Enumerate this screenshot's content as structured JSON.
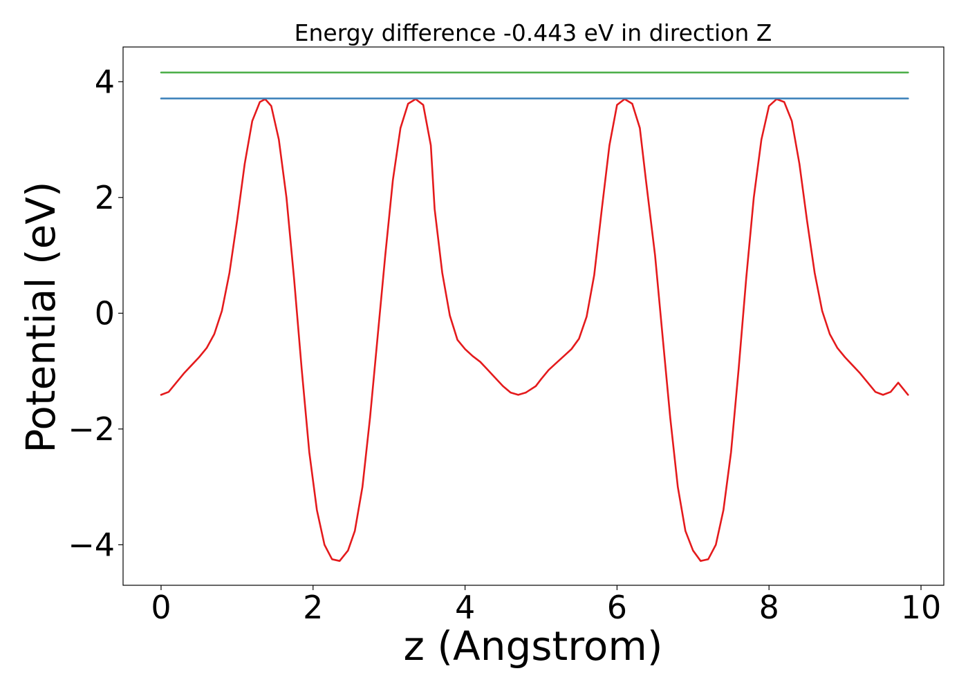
{
  "chart_data": {
    "type": "line",
    "title": "Energy difference -0.443 eV in direction Z",
    "xlabel": "z (Angstrom)",
    "ylabel": "Potential (eV)",
    "xlim": [
      -0.5,
      10.3
    ],
    "ylim": [
      -4.7,
      4.6
    ],
    "xticks": [
      0,
      2,
      4,
      6,
      8,
      10
    ],
    "xtick_labels": [
      "0",
      "2",
      "4",
      "6",
      "8",
      "10"
    ],
    "yticks": [
      -4,
      -2,
      0,
      2,
      4
    ],
    "ytick_labels": [
      "−4",
      "−2",
      "0",
      "2",
      "4"
    ],
    "grid": false,
    "legend": "none",
    "series": [
      {
        "color": "#e41a1c",
        "x": [
          0.0,
          0.1,
          0.2,
          0.3,
          0.4,
          0.5,
          0.6,
          0.7,
          0.8,
          0.9,
          1.0,
          1.1,
          1.2,
          1.3,
          1.37,
          1.45,
          1.55,
          1.65,
          1.75,
          1.85,
          1.95,
          2.05,
          2.15,
          2.25,
          2.35,
          2.46,
          2.55,
          2.65,
          2.75,
          2.85,
          2.95,
          3.05,
          3.15,
          3.25,
          3.35,
          3.45,
          3.55,
          3.6,
          3.7,
          3.8,
          3.9,
          4.0,
          4.1,
          4.2,
          4.3,
          4.4,
          4.5,
          4.6,
          4.7,
          4.8,
          4.93,
          5.0,
          5.1,
          5.2,
          5.3,
          5.4,
          5.5,
          5.6,
          5.7,
          5.8,
          5.9,
          6.0,
          6.1,
          6.2,
          6.3,
          6.38,
          6.5,
          6.6,
          6.7,
          6.8,
          6.9,
          7.0,
          7.1,
          7.2,
          7.3,
          7.4,
          7.5,
          7.6,
          7.7,
          7.8,
          7.9,
          8.0,
          8.1,
          8.2,
          8.3,
          8.4,
          8.5,
          8.6,
          8.7,
          8.8,
          8.9,
          9.0,
          9.1,
          9.2,
          9.3,
          9.4,
          9.5,
          9.6,
          9.7,
          9.83
        ],
        "y": [
          -1.41,
          -1.36,
          -1.2,
          -1.04,
          -0.9,
          -0.76,
          -0.6,
          -0.36,
          0.04,
          0.7,
          1.6,
          2.58,
          3.32,
          3.65,
          3.7,
          3.58,
          3.0,
          2.0,
          0.6,
          -0.96,
          -2.4,
          -3.4,
          -4.0,
          -4.25,
          -4.28,
          -4.1,
          -3.76,
          -3.0,
          -1.8,
          -0.4,
          1.0,
          2.3,
          3.2,
          3.62,
          3.7,
          3.6,
          2.9,
          1.8,
          0.7,
          -0.04,
          -0.46,
          -0.62,
          -0.74,
          -0.84,
          -0.98,
          -1.12,
          -1.26,
          -1.37,
          -1.41,
          -1.37,
          -1.26,
          -1.14,
          -0.98,
          -0.86,
          -0.74,
          -0.62,
          -0.44,
          -0.06,
          0.66,
          1.8,
          2.9,
          3.6,
          3.7,
          3.62,
          3.2,
          2.3,
          1.0,
          -0.4,
          -1.8,
          -3.0,
          -3.76,
          -4.1,
          -4.28,
          -4.25,
          -4.0,
          -3.4,
          -2.4,
          -0.96,
          0.6,
          2.0,
          3.0,
          3.58,
          3.7,
          3.65,
          3.32,
          2.58,
          1.6,
          0.7,
          0.04,
          -0.36,
          -0.6,
          -0.76,
          -0.9,
          -1.04,
          -1.2,
          -1.36,
          -1.41,
          -1.36,
          -1.2,
          -1.41
        ]
      },
      {
        "color": "#377eb8",
        "x": [
          0.0,
          9.83
        ],
        "y": [
          3.71,
          3.71
        ]
      },
      {
        "color": "#4daf4a",
        "x": [
          0.0,
          9.83
        ],
        "y": [
          4.16,
          4.16
        ]
      }
    ]
  }
}
